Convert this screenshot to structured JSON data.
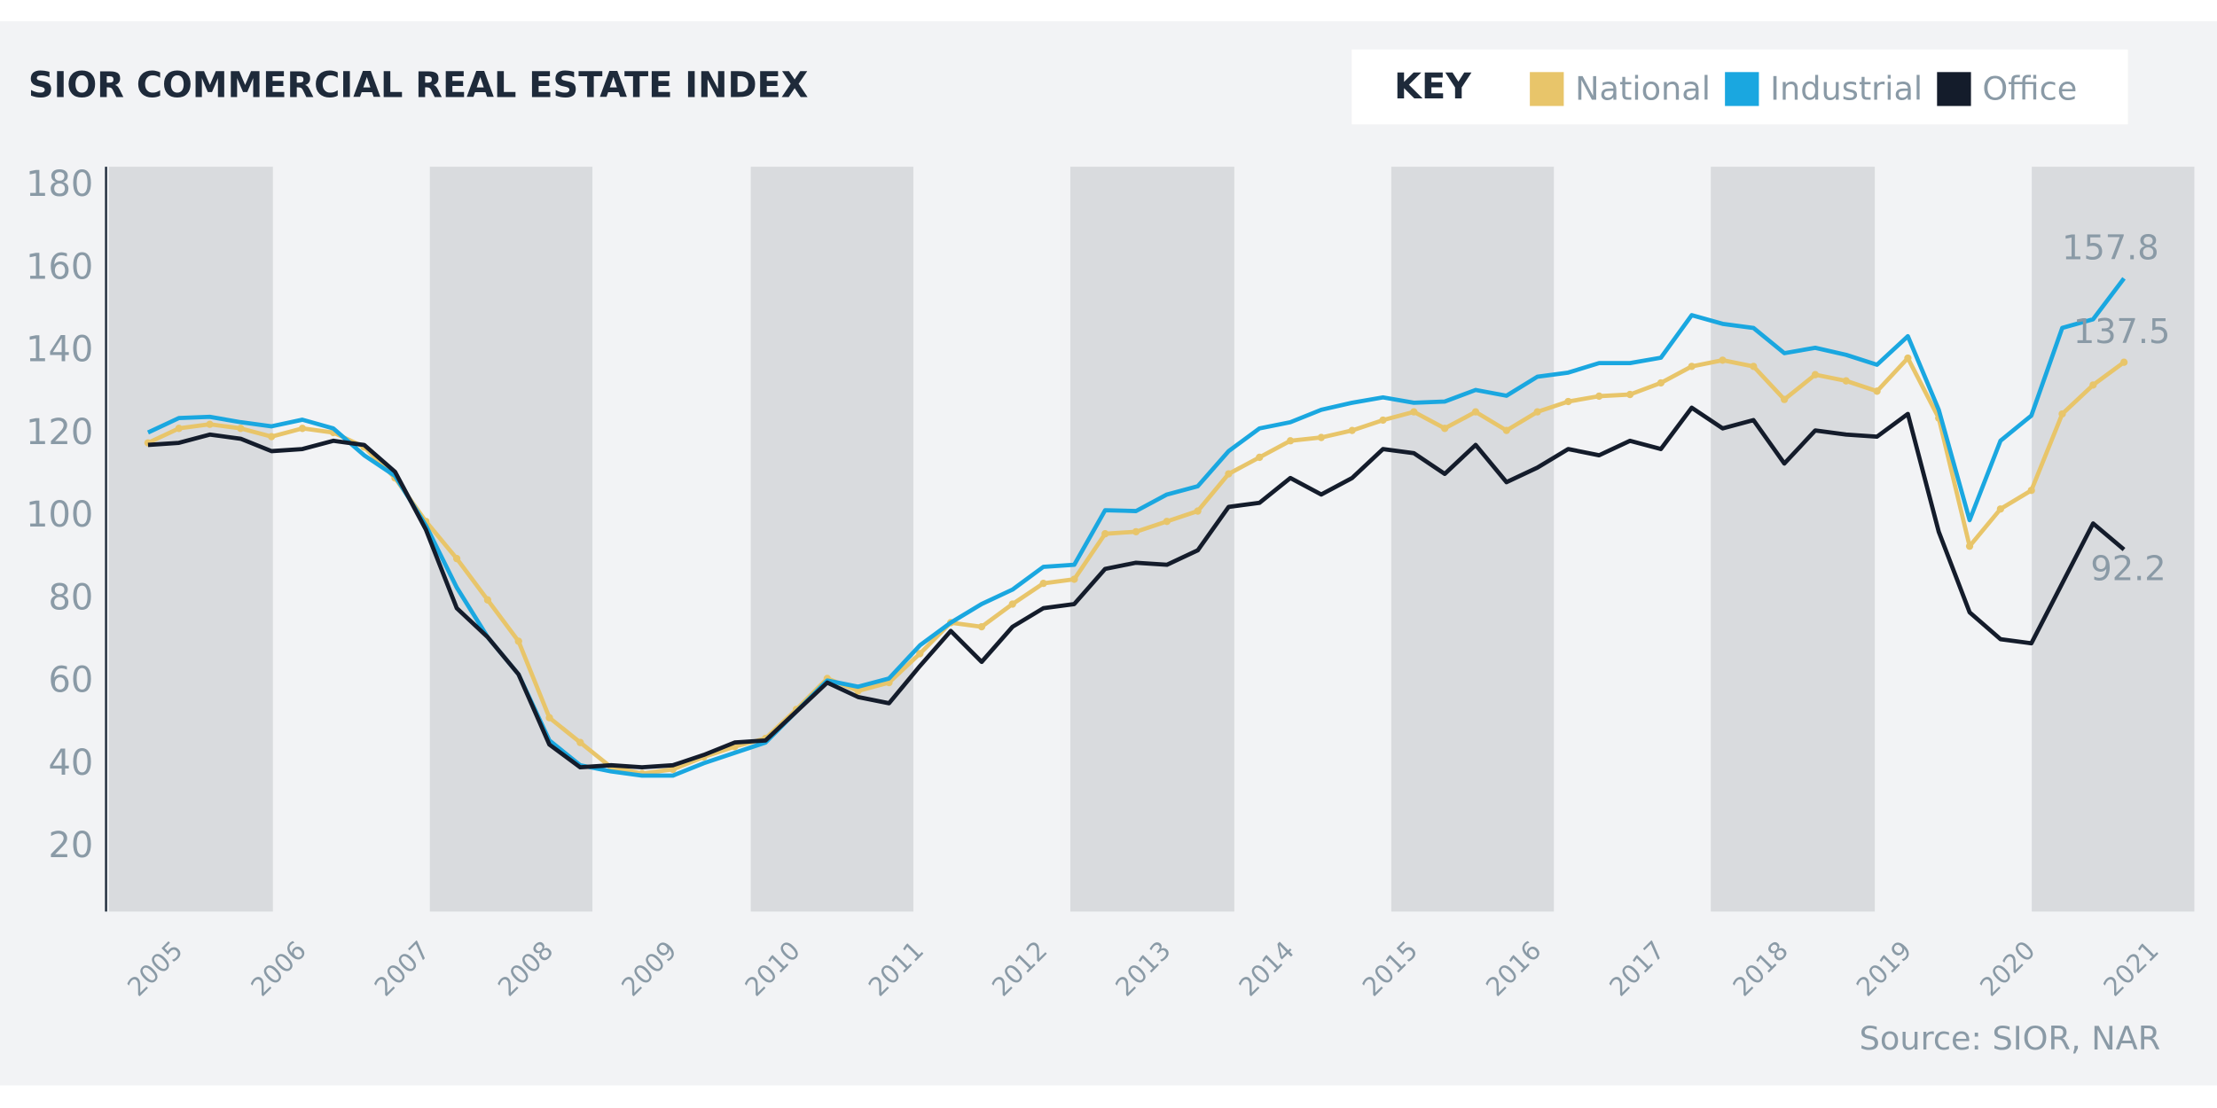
{
  "chart_data": {
    "type": "line",
    "title": "SIOR COMMERCIAL REAL ESTATE INDEX",
    "legend_title": "KEY",
    "source": "Source: SIOR, NAR",
    "x": [
      2005,
      2005.25,
      2005.5,
      2005.75,
      2006,
      2006.25,
      2006.5,
      2006.75,
      2007,
      2007.25,
      2007.5,
      2007.75,
      2008,
      2008.25,
      2008.5,
      2008.75,
      2009,
      2009.25,
      2009.5,
      2009.75,
      2010,
      2010.25,
      2010.5,
      2010.75,
      2011,
      2011.25,
      2011.5,
      2011.75,
      2012,
      2012.25,
      2012.5,
      2012.75,
      2013,
      2013.25,
      2013.5,
      2013.75,
      2014,
      2014.25,
      2014.5,
      2014.75,
      2015,
      2015.25,
      2015.5,
      2015.75,
      2016,
      2016.25,
      2016.5,
      2016.75,
      2017,
      2017.25,
      2017.5,
      2017.75,
      2018,
      2018.25,
      2018.5,
      2018.75,
      2019,
      2019.25,
      2019.5,
      2019.75,
      2020,
      2020.25,
      2020.5,
      2020.75,
      2021
    ],
    "xlim": [
      2004.66,
      2021.57
    ],
    "xticks": [
      2005,
      2006,
      2007,
      2008,
      2009,
      2010,
      2011,
      2012,
      2013,
      2014,
      2015,
      2016,
      2017,
      2018,
      2019,
      2020,
      2021
    ],
    "ylim": [
      4.6,
      184.8
    ],
    "yticks": [
      20,
      40,
      60,
      80,
      100,
      120,
      140,
      160,
      180
    ],
    "series": [
      {
        "name": "National",
        "color": "#e8c56a",
        "markers": true,
        "values": [
          118,
          121.5,
          122.5,
          121.5,
          119.5,
          121.5,
          120.5,
          117,
          109.5,
          99,
          90,
          80,
          70,
          51.5,
          45.5,
          39.5,
          38,
          39,
          42,
          44.5,
          46.5,
          53.5,
          61,
          58,
          60,
          67,
          74.5,
          73.5,
          79,
          84,
          85,
          96,
          96.5,
          99,
          101.5,
          110.5,
          114.5,
          118.5,
          119.3,
          121,
          123.5,
          125.5,
          121.5,
          125.5,
          121,
          125.5,
          128,
          129.3,
          129.7,
          132.5,
          136.5,
          138,
          136.5,
          128.5,
          134.5,
          133,
          130.5,
          138.5,
          124,
          93,
          102,
          106.5,
          125,
          132,
          137.5
        ]
      },
      {
        "name": "Industrial",
        "color": "#1aa7e0",
        "markers": false,
        "values": [
          120.5,
          124,
          124.3,
          123,
          122,
          123.6,
          121.5,
          115,
          110,
          98,
          83,
          71,
          62,
          46,
          40,
          38.5,
          37.5,
          37.5,
          40.5,
          43,
          45.5,
          53,
          60.5,
          59,
          61,
          69,
          74.5,
          79,
          82.5,
          88,
          88.5,
          101.7,
          101.5,
          105.5,
          107.5,
          116,
          121.5,
          123,
          126,
          127.7,
          129,
          127.7,
          128,
          130.8,
          129.4,
          134,
          135,
          137.3,
          137.3,
          138.6,
          148.9,
          146.8,
          145.8,
          139.7,
          141,
          139.3,
          136.9,
          143.8,
          126,
          99.3,
          118.5,
          124.6,
          145.8,
          147.9,
          157.8
        ]
      },
      {
        "name": "Office",
        "color": "#141c2b",
        "markers": false,
        "values": [
          117.5,
          118,
          120,
          119,
          116,
          116.5,
          118.5,
          117.5,
          111,
          97,
          78,
          71,
          62,
          45,
          39.5,
          40,
          39.5,
          40,
          42.5,
          45.5,
          46,
          53,
          60,
          56.5,
          55,
          64,
          72.5,
          65,
          73.5,
          78,
          79,
          87.5,
          89,
          88.5,
          92,
          102.5,
          103.5,
          109.5,
          105.5,
          109.5,
          116.5,
          115.5,
          110.5,
          117.5,
          108.5,
          112,
          116.5,
          115,
          118.5,
          116.5,
          126.5,
          121.5,
          123.5,
          113,
          121,
          120,
          119.5,
          125,
          96.5,
          77,
          70.5,
          69.5,
          84,
          98.5,
          92.2
        ]
      }
    ]
  }
}
